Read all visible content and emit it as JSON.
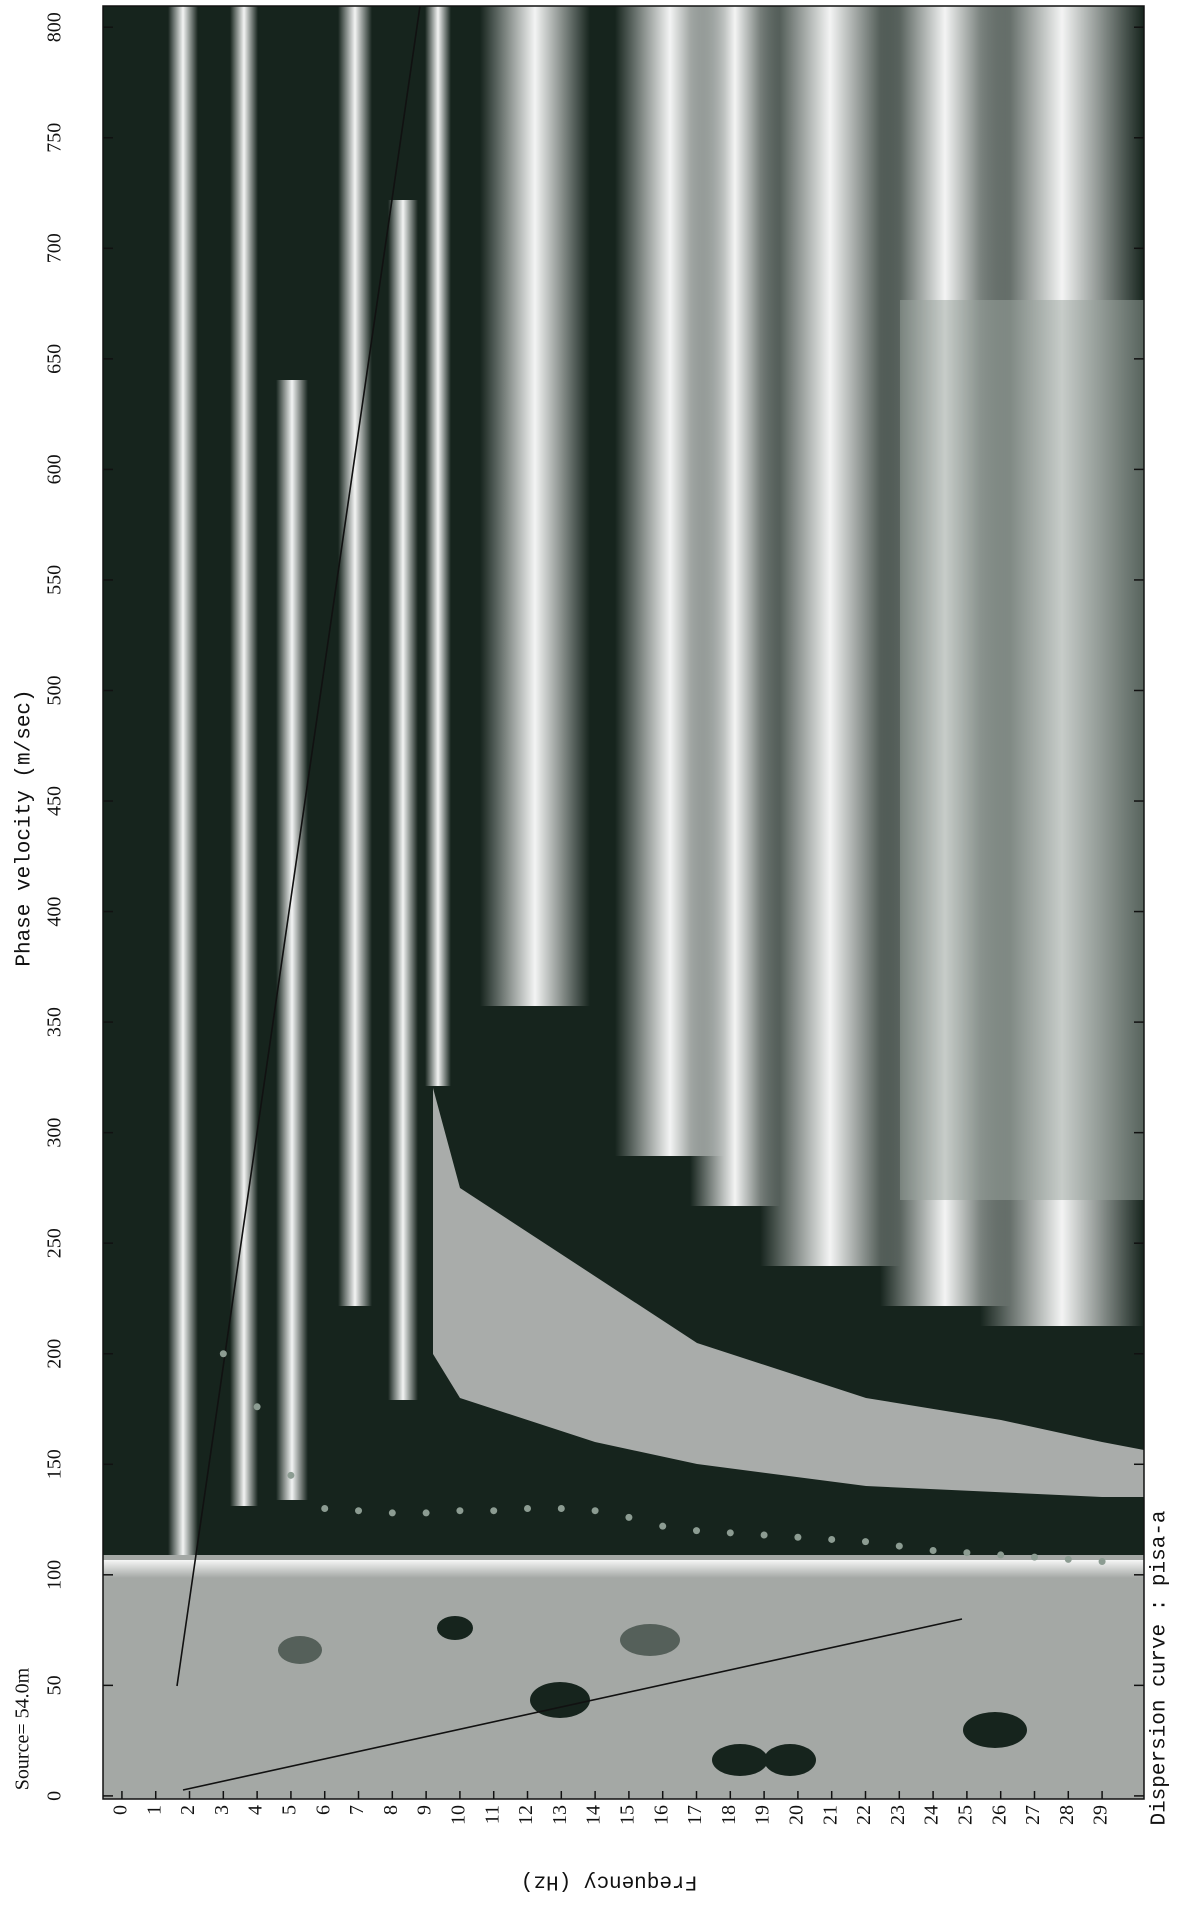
{
  "chart_data": {
    "type": "scatter",
    "title": "Phase velocity (m/sec)",
    "x_label": "Frequency (Hz)",
    "annotation": "Source= 54.0m",
    "xlim": [
      -0.56,
      30.24
    ],
    "ylim": [
      -1.4,
      809.6
    ],
    "xticks": [
      0,
      1,
      2,
      3,
      4,
      5,
      6,
      7,
      8,
      9,
      10,
      11,
      12,
      13,
      14,
      15,
      16,
      17,
      18,
      19,
      20,
      21,
      22,
      23,
      24,
      25,
      26,
      27,
      28,
      29
    ],
    "yticks": [
      0,
      50,
      100,
      150,
      200,
      250,
      300,
      350,
      400,
      450,
      500,
      550,
      600,
      650,
      700,
      750,
      800
    ],
    "x": [
      3,
      4,
      5,
      6,
      7,
      8,
      9,
      10,
      11,
      12,
      13,
      14,
      15,
      16,
      17,
      18,
      19,
      20,
      21,
      22,
      23,
      24,
      25,
      26,
      27,
      28,
      29
    ],
    "series": [
      {
        "name": "Dispersion curve : pisa-a",
        "color": "#8c9c92",
        "values": [
          200,
          176,
          145,
          130,
          129,
          128,
          128,
          129,
          129,
          130,
          130,
          129,
          126,
          122,
          120,
          119,
          118,
          117,
          116,
          115,
          113,
          111,
          110,
          109,
          108,
          107,
          106
        ]
      }
    ]
  }
}
